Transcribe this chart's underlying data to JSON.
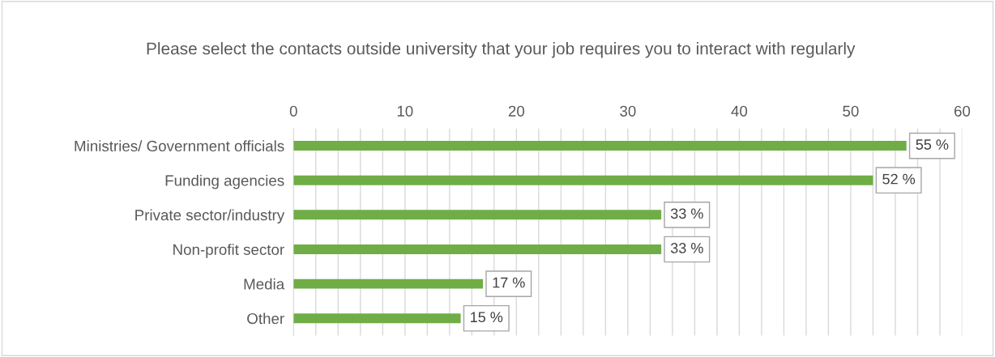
{
  "chart_data": {
    "type": "bar",
    "orientation": "horizontal",
    "title": "Please select the contacts outside university that your job requires you to interact with regularly",
    "categories": [
      "Ministries/ Government officials",
      "Funding agencies",
      "Private sector/industry",
      "Non-profit sector",
      "Media",
      "Other"
    ],
    "values": [
      55,
      52,
      33,
      33,
      17,
      15
    ],
    "value_labels": [
      "55 %",
      "52 %",
      "33 %",
      "33 %",
      "17 %",
      "15 %"
    ],
    "color": "#70ad47",
    "xlim": [
      0,
      60
    ],
    "xticks": [
      0,
      10,
      20,
      30,
      40,
      50,
      60
    ],
    "grid": "x"
  }
}
